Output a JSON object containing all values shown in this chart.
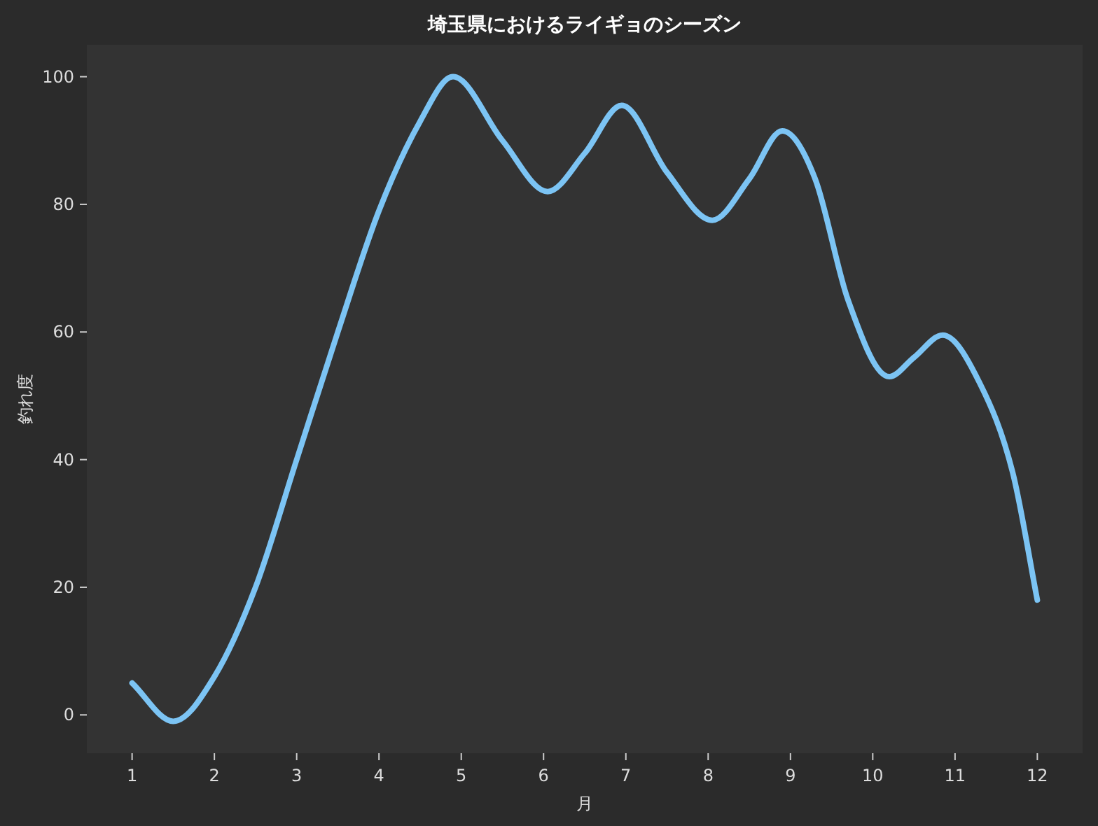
{
  "chart_data": {
    "type": "line",
    "title": "埼玉県におけるライギョのシーズン",
    "xlabel": "月",
    "ylabel": "釣れ度",
    "series": [
      {
        "color": "#7cc4f4",
        "x": [
          1,
          1.5,
          2,
          2.5,
          3,
          3.5,
          4,
          4.5,
          4.9,
          5.5,
          6.05,
          6.5,
          6.95,
          7.5,
          8.05,
          8.5,
          8.9,
          9.3,
          9.7,
          10.2,
          10.5,
          10.85,
          11.3,
          11.7,
          12
        ],
        "values": [
          5,
          -1,
          6,
          20,
          40,
          60,
          79,
          93,
          100,
          90,
          82,
          88,
          95.5,
          85,
          77.5,
          84,
          91.5,
          84,
          65,
          53,
          56,
          59.5,
          52,
          38,
          18
        ]
      }
    ],
    "xlim": [
      0.45,
      12.55
    ],
    "ylim": [
      -6,
      105
    ],
    "xticks": [
      1,
      2,
      3,
      4,
      5,
      6,
      7,
      8,
      9,
      10,
      11,
      12
    ],
    "yticks": [
      0,
      20,
      40,
      60,
      80,
      100
    ],
    "grid": false,
    "marker": "none",
    "line_style": "solid"
  }
}
